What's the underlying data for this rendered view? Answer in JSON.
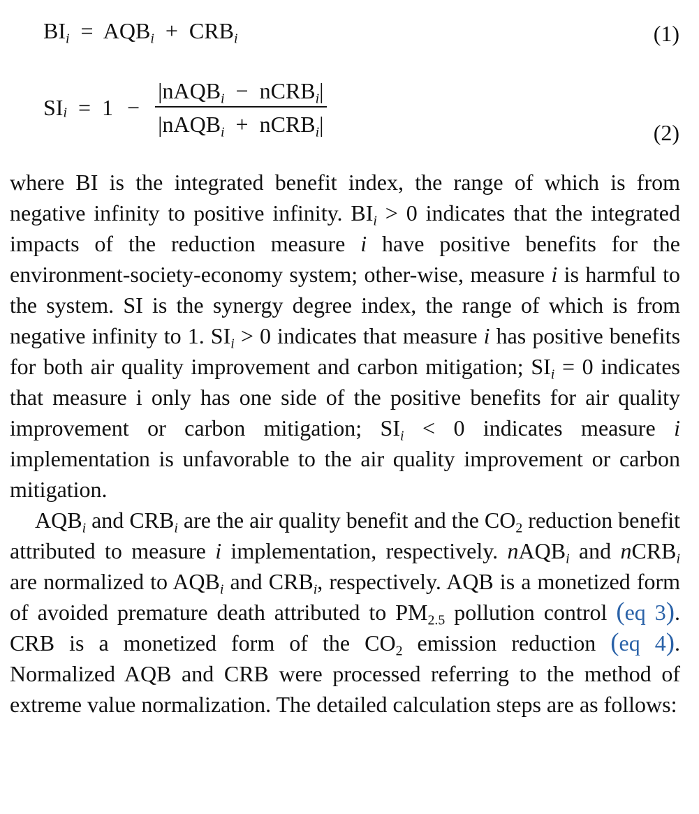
{
  "equations": [
    {
      "number": "(1)",
      "lhs": "BI",
      "sub": "i",
      "eq_sign": "=",
      "term1": "AQB",
      "plus": "+",
      "term2": "CRB"
    },
    {
      "number": "(2)",
      "lhs": "SI",
      "sub": "i",
      "eq_sign": "=",
      "one": "1",
      "minus": "−",
      "numerator_a": "|nAQB",
      "numerator_op": "−",
      "numerator_b": "nCRB",
      "numerator_end": "|",
      "denominator_a": "|nAQB",
      "denominator_op": "+",
      "denominator_b": "nCRB",
      "denominator_end": "|"
    }
  ],
  "paragraph1": {
    "s1": "where BI is the integrated benefit index, the range of which is from negative infinity to positive infinity. BI",
    "s1_sub": "i",
    "s2": " > 0 indicates that the integrated impacts of the reduction measure ",
    "s2_i": "i",
    "s3": " have positive benefits for the environment-society-economy system; other-wise, measure ",
    "s3_i": "i",
    "s4": " is harmful to the system. SI is the synergy degree index, the range of which is from negative infinity to 1. SI",
    "s4_sub": "i",
    "s5": " > 0 indicates that measure ",
    "s5_i": "i",
    "s6": " has positive benefits for both air quality improvement and carbon mitigation; SI",
    "s6_sub": "i",
    "s7": " = 0 indicates that measure i only has one side of the positive benefits for air quality improvement or carbon mitigation; SI",
    "s7_sub": "i",
    "s8": " < 0 indicates measure ",
    "s8_i": "i",
    "s9": " implementation is unfavorable to the air quality improvement or carbon mitigation."
  },
  "paragraph2": {
    "t1": "AQB",
    "t1_sub": "i",
    "t2": " and CRB",
    "t2_sub": "i",
    "t3": " are the air quality benefit and the CO",
    "t3_sub": "2",
    "t4": " reduction benefit attributed to measure ",
    "t4_i": "i",
    "t5": " implementation, respectively. ",
    "t5_n": "n",
    "t6": "AQB",
    "t6_sub": "i",
    "t7": " and ",
    "t7_n": "n",
    "t8": "CRB",
    "t8_sub": "i",
    "t9": " are normalized to AQB",
    "t9_sub": "i",
    "t10": " and CRB",
    "t10_sub": "i",
    "t11": ", respectively. AQB is a monetized form of avoided premature death attributed to PM",
    "t11_sub": "2.5",
    "t12": " pollution control ",
    "link1": "eq 3",
    "t13": ". CRB is a monetized form of the CO",
    "t13_sub": "2",
    "t14": " emission reduction ",
    "link2": "eq 4",
    "t15": ". Normalized AQB and CRB were processed referring to the method of extreme value normalization. The detailed calculation steps are as follows:"
  },
  "colors": {
    "text": "#111111",
    "link": "#2a62a8",
    "background": "#ffffff"
  }
}
